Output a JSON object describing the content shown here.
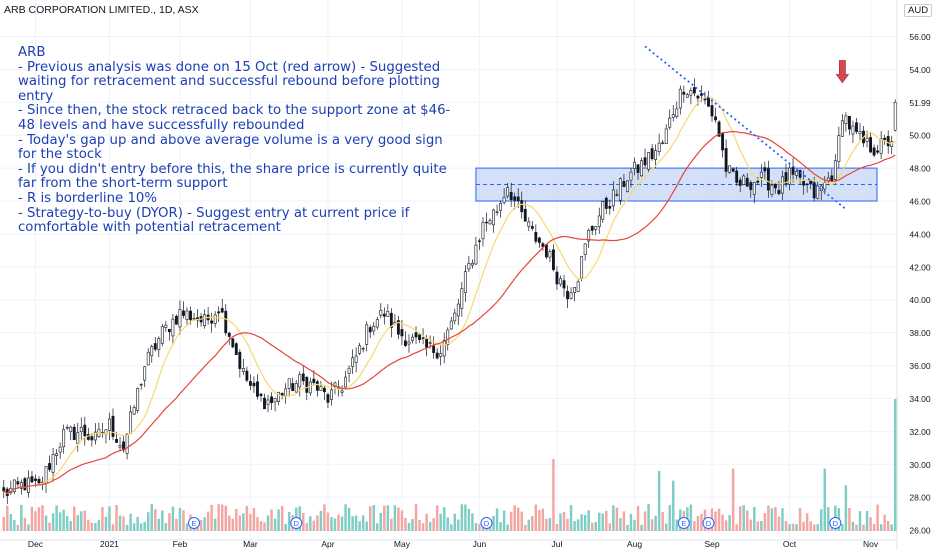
{
  "header": {
    "symbol_line": "ARB CORPORATION LIMITED., 1D, ASX",
    "currency": "AUD"
  },
  "annotation": {
    "lines": [
      "ARB",
      "- Previous analysis was done on 15 Oct (red arrow) - Suggested waiting for retracement and successful rebound before plotting entry",
      "- Since then, the stock retraced back to the support zone at $46-48 levels and have successfully rebounded",
      "- Today's gap up and above average volume is a very good sign for the stock",
      "- If you didn't entry before this, the share price is currently quite far from the short-term support",
      "- R is borderline 10%",
      "- Strategy-to-buy (DYOR) - Suggest entry at current price if comfortable with potential retracement"
    ]
  },
  "colors": {
    "up": "#26a69a",
    "down": "#131722",
    "wick": "#131722",
    "ma_fast": "#f7d96b",
    "ma_slow": "#e8443a",
    "zone_fill": "#bcd0f4",
    "zone_border": "#2962ff",
    "trendline": "#2962ff",
    "arrow": "#d8484f",
    "vol_up": "#7fcdc5",
    "vol_down": "#f3a6a1",
    "grid": "#f0f3fa",
    "axis_text": "#131722"
  },
  "chart_data": {
    "type": "candlestick",
    "ylim": [
      25.4,
      57.0
    ],
    "yticks": [
      26,
      28,
      30,
      32,
      34,
      36,
      38,
      40,
      42,
      44,
      46,
      48,
      50,
      52,
      54,
      56
    ],
    "ytick_labels": [
      "26.00",
      "28.00",
      "30.00",
      "32.00",
      "34.00",
      "36.00",
      "38.00",
      "40.00",
      "42.00",
      "44.00",
      "46.00",
      "48.00",
      "50.00",
      "52.00",
      "54.00",
      "56.00"
    ],
    "last_price_label": "51.99",
    "xlabels": [
      {
        "label": "Dec",
        "bar": 9
      },
      {
        "label": "2021",
        "bar": 30
      },
      {
        "label": "Feb",
        "bar": 50
      },
      {
        "label": "Mar",
        "bar": 70
      },
      {
        "label": "Apr",
        "bar": 92
      },
      {
        "label": "May",
        "bar": 113
      },
      {
        "label": "Jun",
        "bar": 135
      },
      {
        "label": "Jul",
        "bar": 157
      },
      {
        "label": "Aug",
        "bar": 179
      },
      {
        "label": "Sep",
        "bar": 201
      },
      {
        "label": "Oct",
        "bar": 223
      },
      {
        "label": "Nov",
        "bar": 246
      }
    ],
    "ohlc_anchors": [
      [
        0,
        28.2
      ],
      [
        6,
        28.8
      ],
      [
        10,
        28.6
      ],
      [
        14,
        30.5
      ],
      [
        17,
        31.8
      ],
      [
        22,
        32.0
      ],
      [
        26,
        31.5
      ],
      [
        30,
        32.4
      ],
      [
        34,
        31.0
      ],
      [
        40,
        36.0
      ],
      [
        45,
        38.0
      ],
      [
        50,
        39.2
      ],
      [
        54,
        39.0
      ],
      [
        57,
        38.6
      ],
      [
        61,
        39.6
      ],
      [
        64,
        38.0
      ],
      [
        68,
        35.5
      ],
      [
        72,
        34.0
      ],
      [
        76,
        33.8
      ],
      [
        80,
        34.6
      ],
      [
        84,
        35.0
      ],
      [
        88,
        34.8
      ],
      [
        92,
        34.0
      ],
      [
        96,
        34.8
      ],
      [
        100,
        36.5
      ],
      [
        104,
        38.5
      ],
      [
        108,
        39.2
      ],
      [
        112,
        38.0
      ],
      [
        116,
        37.5
      ],
      [
        120,
        37.0
      ],
      [
        124,
        37.0
      ],
      [
        128,
        39.0
      ],
      [
        132,
        42.0
      ],
      [
        136,
        44.5
      ],
      [
        140,
        45.5
      ],
      [
        143,
        47.0
      ],
      [
        146,
        45.5
      ],
      [
        150,
        44.0
      ],
      [
        154,
        43.0
      ],
      [
        157,
        41.5
      ],
      [
        160,
        40.5
      ],
      [
        163,
        41.5
      ],
      [
        166,
        44.0
      ],
      [
        170,
        45.5
      ],
      [
        174,
        46.5
      ],
      [
        177,
        47.5
      ],
      [
        180,
        48.0
      ],
      [
        184,
        48.8
      ],
      [
        187,
        49.5
      ],
      [
        190,
        51.5
      ],
      [
        193,
        53.0
      ],
      [
        196,
        52.6
      ],
      [
        199,
        52.0
      ],
      [
        202,
        51.0
      ],
      [
        205,
        48.0
      ],
      [
        208,
        47.0
      ],
      [
        212,
        47.2
      ],
      [
        216,
        47.3
      ],
      [
        220,
        46.8
      ],
      [
        223,
        47.5
      ],
      [
        227,
        47.0
      ],
      [
        230,
        46.4
      ],
      [
        233,
        47.0
      ],
      [
        236,
        48.0
      ],
      [
        238,
        51.4
      ],
      [
        241,
        50.2
      ],
      [
        244,
        49.5
      ],
      [
        247,
        49.2
      ],
      [
        250,
        49.4
      ],
      [
        252,
        49.8
      ],
      [
        253,
        52.0
      ]
    ],
    "ma_fast_period": 10,
    "ma_slow_period": 30,
    "support_zone": [
      46.0,
      48.0
    ],
    "support_zone_start_bar": 134,
    "trendline": [
      [
        182,
        55.4
      ],
      [
        239,
        45.5
      ]
    ],
    "arrow_bar": 238,
    "arrow_price": 53.2,
    "volume_spikes": [
      {
        "bar": 156,
        "value": 3.0
      },
      {
        "bar": 186,
        "value": 2.5
      },
      {
        "bar": 190,
        "value": 2.1
      },
      {
        "bar": 207,
        "value": 2.6
      },
      {
        "bar": 233,
        "value": 2.6
      },
      {
        "bar": 239,
        "value": 1.9
      },
      {
        "bar": 253,
        "value": 5.5
      }
    ],
    "event_markers": [
      {
        "bar": 54,
        "label": "E"
      },
      {
        "bar": 83,
        "label": "D"
      },
      {
        "bar": 137,
        "label": "D"
      },
      {
        "bar": 193,
        "label": "E"
      },
      {
        "bar": 200,
        "label": "D"
      },
      {
        "bar": 236,
        "label": "D"
      }
    ]
  }
}
